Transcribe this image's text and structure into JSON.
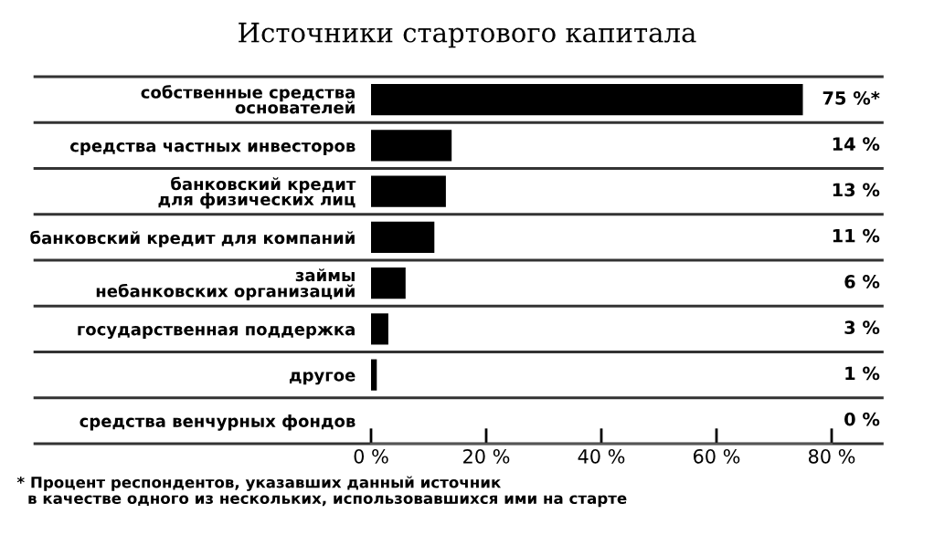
{
  "chart_data": {
    "type": "bar",
    "orientation": "horizontal",
    "title": "Источники стартового капитала",
    "categories": [
      "собственные средства\nоснователей",
      "средства частных инвесторов",
      "банковский кредит\nдля физических лиц",
      "банковский кредит для компаний",
      "займы\nнебанковских организаций",
      "государственная поддержка",
      "другое",
      "средства венчурных фондов"
    ],
    "values": [
      75,
      14,
      13,
      11,
      6,
      3,
      1,
      0
    ],
    "value_labels": [
      "75 %*",
      "14 %",
      "13 %",
      "11 %",
      "6 %",
      "3 %",
      "1 %",
      "0 %"
    ],
    "color": "#000000",
    "xlim": [
      0,
      80
    ],
    "xticks": [
      {
        "value": 0,
        "label": "0 %"
      },
      {
        "value": 20,
        "label": "20 %"
      },
      {
        "value": 40,
        "label": "40 %"
      },
      {
        "value": 60,
        "label": "60 %"
      },
      {
        "value": 80,
        "label": "80 %"
      }
    ],
    "grid": false,
    "legend": false,
    "annotations": [
      "* Процент респондентов, указавших данный источник\n  в качестве одного из нескольких, использовавшихся ими на старте"
    ]
  }
}
